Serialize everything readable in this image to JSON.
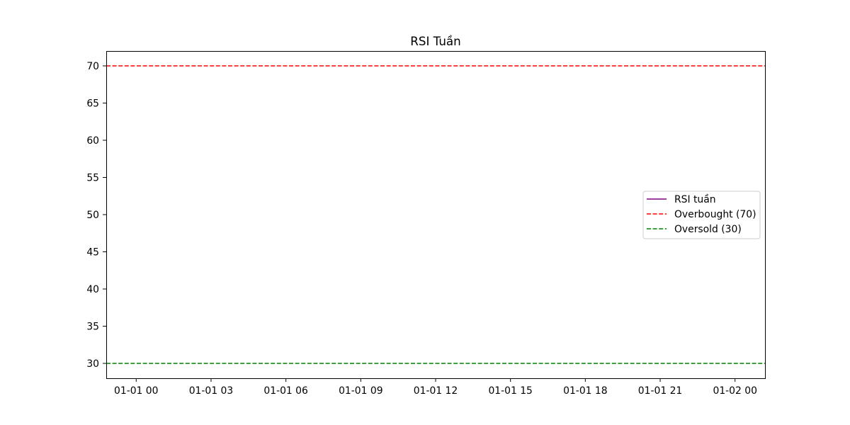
{
  "chart_data": {
    "type": "line",
    "title": "RSI Tuần",
    "xlabel": "",
    "ylabel": "",
    "x_ticks": [
      "01-01 00",
      "01-01 03",
      "01-01 06",
      "01-01 09",
      "01-01 12",
      "01-01 15",
      "01-01 18",
      "01-01 21",
      "01-02 00"
    ],
    "x_tick_hours": [
      0,
      3,
      6,
      9,
      12,
      15,
      18,
      21,
      24
    ],
    "xlim_hours": [
      -1.2,
      25.2
    ],
    "y_ticks": [
      30,
      35,
      40,
      45,
      50,
      55,
      60,
      65,
      70
    ],
    "ylim": [
      28,
      72
    ],
    "grid": false,
    "legend_placement": "center-right",
    "series": [
      {
        "name": "RSI tuần",
        "style": "solid",
        "color": "#800080",
        "values": []
      },
      {
        "name": "Overbought (70)",
        "style": "dashed",
        "color": "#ff0000",
        "y": 70
      },
      {
        "name": "Oversold (30)",
        "style": "dashed",
        "color": "#008000",
        "y": 30
      }
    ]
  }
}
